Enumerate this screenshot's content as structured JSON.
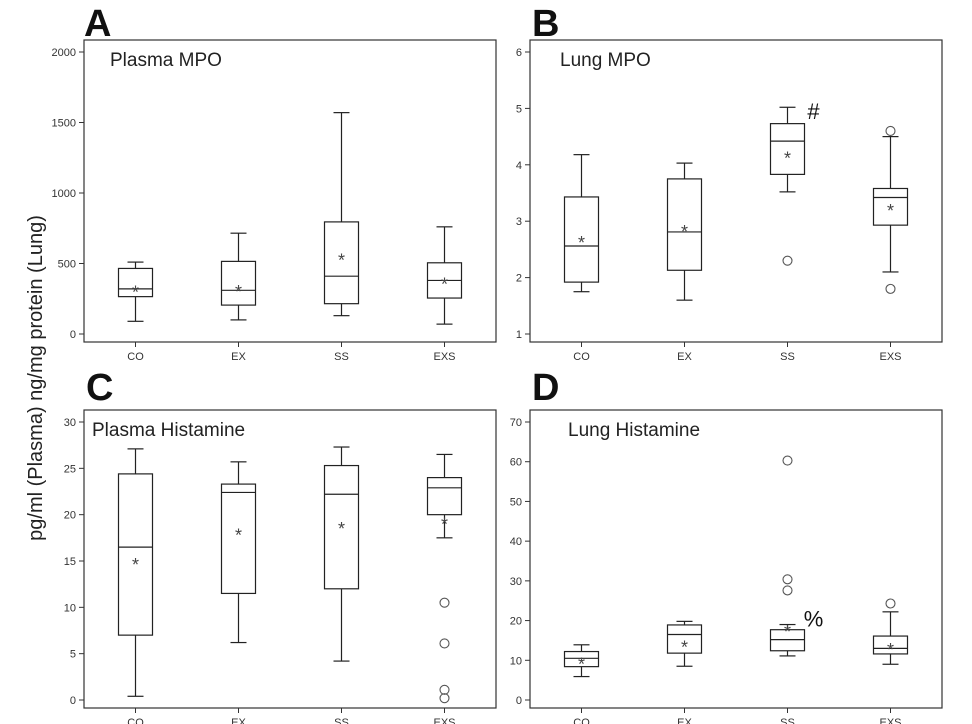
{
  "y_axis_label": "pg/ml (Plasma) ng/mg protein (Lung)",
  "chart_data": [
    {
      "type": "box",
      "panel_letter": "A",
      "title": "Plasma MPO",
      "categories": [
        "CO",
        "EX",
        "SS",
        "EXS"
      ],
      "ylim": [
        0,
        2000
      ],
      "yticks": [
        0,
        500,
        1000,
        1500,
        2000
      ],
      "boxes": [
        {
          "min": 90,
          "q1": 265,
          "median": 320,
          "q3": 465,
          "max": 510,
          "mean": 330,
          "outliers": []
        },
        {
          "min": 100,
          "q1": 205,
          "median": 310,
          "q3": 515,
          "max": 715,
          "mean": 335,
          "outliers": []
        },
        {
          "min": 130,
          "q1": 215,
          "median": 410,
          "q3": 795,
          "max": 1570,
          "mean": 555,
          "outliers": []
        },
        {
          "min": 70,
          "q1": 255,
          "median": 380,
          "q3": 505,
          "max": 760,
          "mean": 385,
          "outliers": []
        }
      ],
      "annotations": []
    },
    {
      "type": "box",
      "panel_letter": "B",
      "title": "Lung MPO",
      "categories": [
        "CO",
        "EX",
        "SS",
        "EXS"
      ],
      "ylim": [
        1,
        6
      ],
      "yticks": [
        1,
        2,
        3,
        4,
        5,
        6
      ],
      "boxes": [
        {
          "min": 1.75,
          "q1": 1.92,
          "median": 2.56,
          "q3": 3.43,
          "max": 4.18,
          "mean": 2.7,
          "outliers": []
        },
        {
          "min": 1.6,
          "q1": 2.13,
          "median": 2.81,
          "q3": 3.75,
          "max": 4.03,
          "mean": 2.9,
          "outliers": []
        },
        {
          "min": 3.52,
          "q1": 3.83,
          "median": 4.42,
          "q3": 4.73,
          "max": 5.02,
          "mean": 4.2,
          "outliers": [
            2.3
          ]
        },
        {
          "min": 2.1,
          "q1": 2.93,
          "median": 3.42,
          "q3": 3.58,
          "max": 4.5,
          "mean": 3.27,
          "outliers": [
            4.6,
            1.8
          ]
        }
      ],
      "annotations": [
        {
          "category": "SS",
          "text": "#",
          "y": 4.95
        }
      ]
    },
    {
      "type": "box",
      "panel_letter": "C",
      "title": "Plasma Histamine",
      "categories": [
        "CO",
        "EX",
        "SS",
        "EXS"
      ],
      "ylim": [
        0,
        30
      ],
      "yticks": [
        0,
        5,
        10,
        15,
        20,
        25,
        30
      ],
      "boxes": [
        {
          "min": 0.4,
          "q1": 7.0,
          "median": 16.5,
          "q3": 24.4,
          "max": 27.1,
          "mean": 15.1,
          "outliers": []
        },
        {
          "min": 6.2,
          "q1": 11.5,
          "median": 22.4,
          "q3": 23.3,
          "max": 25.7,
          "mean": 18.3,
          "outliers": []
        },
        {
          "min": 4.2,
          "q1": 12.0,
          "median": 22.2,
          "q3": 25.3,
          "max": 27.3,
          "mean": 19.0,
          "outliers": []
        },
        {
          "min": 17.5,
          "q1": 20.0,
          "median": 22.9,
          "q3": 24.0,
          "max": 26.5,
          "mean": 19.5,
          "outliers": [
            10.5,
            6.1,
            1.1,
            0.2
          ]
        }
      ],
      "annotations": []
    },
    {
      "type": "box",
      "panel_letter": "D",
      "title": "Lung Histamine",
      "categories": [
        "CO",
        "EX",
        "SS",
        "EXS"
      ],
      "ylim": [
        0,
        70
      ],
      "yticks": [
        0,
        10,
        20,
        30,
        40,
        50,
        60,
        70
      ],
      "boxes": [
        {
          "min": 5.9,
          "q1": 8.4,
          "median": 10.5,
          "q3": 12.2,
          "max": 13.9,
          "mean": 10.2,
          "outliers": []
        },
        {
          "min": 8.5,
          "q1": 11.8,
          "median": 16.5,
          "q3": 18.9,
          "max": 19.8,
          "mean": 14.5,
          "outliers": []
        },
        {
          "min": 11.1,
          "q1": 12.4,
          "median": 15.2,
          "q3": 17.7,
          "max": 19.0,
          "mean": 18.4,
          "outliers": [
            27.6,
            30.4,
            60.3
          ]
        },
        {
          "min": 9.0,
          "q1": 11.6,
          "median": 13.0,
          "q3": 16.1,
          "max": 22.2,
          "mean": 13.9,
          "outliers": [
            24.3
          ]
        }
      ],
      "annotations": [
        {
          "category": "SS",
          "text": "%",
          "y": 20.5
        }
      ]
    }
  ]
}
